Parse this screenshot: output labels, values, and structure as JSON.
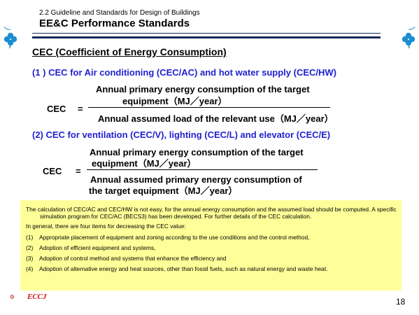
{
  "header": {
    "section_label": "2.2 Guideline and Standards for Design of Buildings",
    "title": "EE&C Performance Standards"
  },
  "heading": "CEC (Coefficient of Energy Consumption)",
  "section1": {
    "title": "(1 ) CEC for Air conditioning (CEC/AC) and hot water supply (CEC/HW)",
    "lhs": "CEC",
    "equals": "=",
    "numerator_line1": "Annual primary energy consumption of the target",
    "numerator_line2": "equipment（MJ／year）",
    "denominator": "Annual assumed load of the relevant use（MJ／year）"
  },
  "section2": {
    "title": "(2) CEC for ventilation (CEC/V), lighting (CEC/L) and elevator (CEC/E)",
    "lhs": "CEC",
    "equals": "=",
    "numerator_line1": "Annual primary energy consumption of the target",
    "numerator_line2": "equipment（MJ／year）",
    "denominator_line1": "Annual assumed primary energy consumption of",
    "denominator_line2": "the target equipment（MJ／year）"
  },
  "note": {
    "paragraph": "The calculation of CEC/AC and CEC/HW is not easy, for the annual energy consumption and the assumed load should be computed. A specific simulation program for CEC/AC (BECS3) has been developed. For further details of the CEC calculation.",
    "intro": "In general, there are four items for decreasing the CEC value:",
    "items": [
      {
        "num": "(1)",
        "text": "Appropriate placement of equipment and zoning according to the use conditions and the control method,"
      },
      {
        "num": "(2)",
        "text": "Adoption of efficient equipment and systems,"
      },
      {
        "num": "(3)",
        "text": "Adoption of control method and systems that enhance the efficiency and"
      },
      {
        "num": "(4)",
        "text": "Adoption of alternative energy and heat sources, other than fossil fuels, such as natural energy and waste heat."
      }
    ]
  },
  "footer": {
    "logo_text": "ECCJ",
    "page_number": "18"
  },
  "colors": {
    "heading_blue": "#1f1fd0",
    "note_background": "#ffff99",
    "clover": "#1c8fd0",
    "logo_red": "#d01010"
  }
}
